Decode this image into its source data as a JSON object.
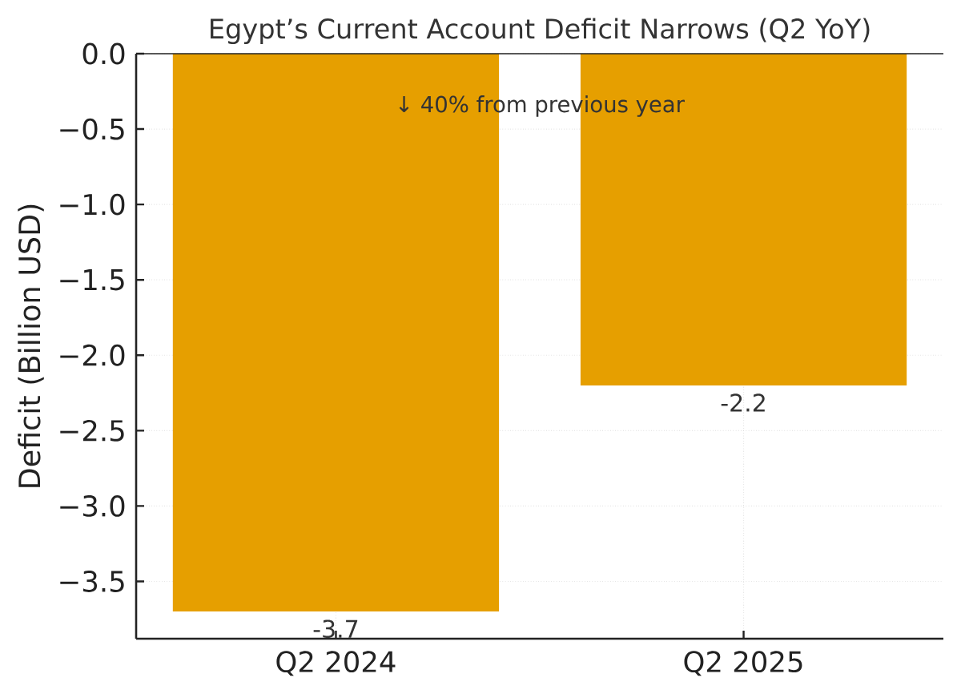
{
  "chart_data": {
    "type": "bar",
    "title": "Egypt’s Current Account Deficit Narrows (Q2 YoY)",
    "ylabel": "Deficit (Billion USD)",
    "categories": [
      "Q2 2024",
      "Q2 2025"
    ],
    "values": [
      -3.7,
      -2.2
    ],
    "color": "#e69f00",
    "ylim": [
      -3.88,
      0
    ],
    "yticks": [
      {
        "value": 0,
        "label": "0.0"
      },
      {
        "value": -0.5,
        "label": "−0.5"
      },
      {
        "value": -1.0,
        "label": "−1.0"
      },
      {
        "value": -1.5,
        "label": "−1.5"
      },
      {
        "value": -2.0,
        "label": "−2.0"
      },
      {
        "value": -2.5,
        "label": "−2.5"
      },
      {
        "value": -3.0,
        "label": "−3.0"
      },
      {
        "value": -3.5,
        "label": "−3.5"
      }
    ],
    "grid": true,
    "data_labels": true,
    "ref_lines": [
      {
        "axis": "y",
        "value": 0,
        "color": "#222222"
      }
    ],
    "annotations": [
      "↓ 40% from previous year"
    ]
  }
}
